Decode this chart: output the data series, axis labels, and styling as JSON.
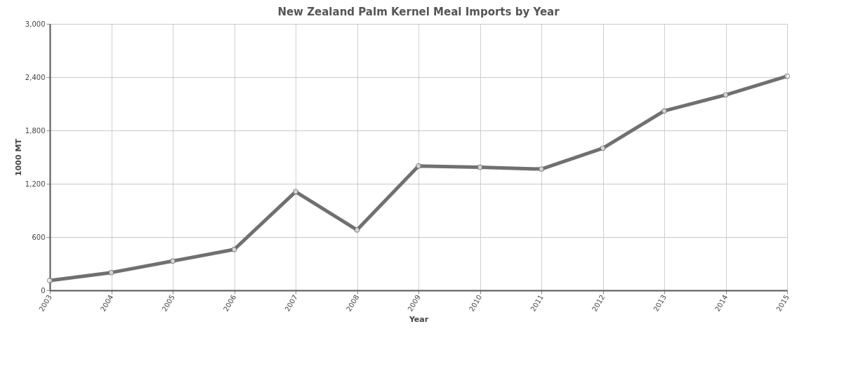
{
  "chart_data": {
    "type": "line",
    "title": "New Zealand Palm Kernel Meal Imports by Year",
    "xlabel": "Year",
    "ylabel": "1000 MT",
    "categories": [
      "2003",
      "2004",
      "2005",
      "2006",
      "2007",
      "2008",
      "2009",
      "2010",
      "2011",
      "2012",
      "2013",
      "2014",
      "2015"
    ],
    "series": [
      {
        "color": "#707070",
        "values": [
          110,
          200,
          330,
          460,
          1110,
          680,
          1400,
          1385,
          1365,
          1600,
          2020,
          2200,
          2410
        ]
      }
    ],
    "ylim": [
      0,
      3000
    ],
    "yticks": [
      {
        "value": 0,
        "label": "0"
      },
      {
        "value": 600,
        "label": "600"
      },
      {
        "value": 1200,
        "label": "1,200"
      },
      {
        "value": 1800,
        "label": "1,800"
      },
      {
        "value": 2400,
        "label": "2,400"
      },
      {
        "value": 3000,
        "label": "3,000"
      }
    ],
    "grid": true,
    "marker": "circle",
    "line_style": "solid",
    "legend": false
  }
}
